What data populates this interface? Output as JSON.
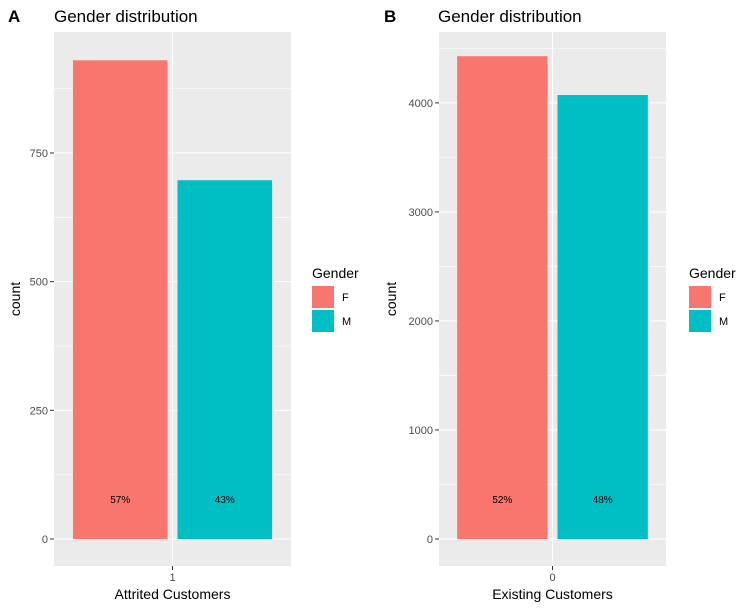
{
  "chart_data": [
    {
      "tag": "A",
      "type": "bar",
      "title": "Gender distribution",
      "xlabel": "Attrited Customers",
      "ylabel": "count",
      "x_tick": "1",
      "yticks": [
        0,
        250,
        500,
        750
      ],
      "ylim": [
        0,
        985
      ],
      "grid": true,
      "legend": {
        "title": "Gender",
        "placement": "right"
      },
      "series": [
        {
          "name": "F",
          "value": 930,
          "label": "57%",
          "color": "#F8766D"
        },
        {
          "name": "M",
          "value": 697,
          "label": "43%",
          "color": "#00BFC4"
        }
      ]
    },
    {
      "tag": "B",
      "type": "bar",
      "title": "Gender distribution",
      "xlabel": "Existing Customers",
      "ylabel": "count",
      "x_tick": "0",
      "yticks": [
        0,
        1000,
        2000,
        3000,
        4000
      ],
      "ylim": [
        0,
        4650
      ],
      "grid": true,
      "legend": {
        "title": "Gender",
        "placement": "right"
      },
      "series": [
        {
          "name": "F",
          "value": 4428,
          "label": "52%",
          "color": "#F8766D"
        },
        {
          "name": "M",
          "value": 4072,
          "label": "48%",
          "color": "#00BFC4"
        }
      ]
    }
  ]
}
